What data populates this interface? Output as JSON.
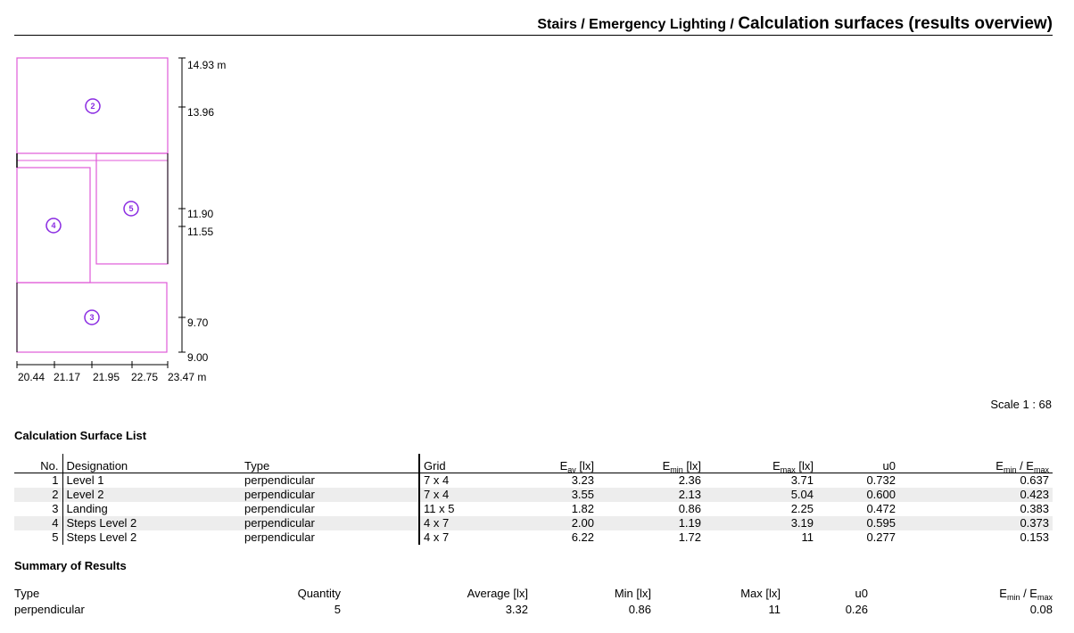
{
  "header": {
    "breadcrumb": "Stairs / Emergency Lighting / ",
    "title": "Calculation surfaces (results overview)"
  },
  "plan": {
    "y_axis": {
      "top_label": "14.93 m",
      "ticks": [
        "13.96",
        "11.90",
        "11.55",
        "9.70",
        "9.00"
      ]
    },
    "x_axis": {
      "ticks": [
        "20.44",
        "21.17",
        "21.95",
        "22.75"
      ],
      "end_label": "23.47 m"
    },
    "surfaces": [
      {
        "id": "2",
        "label": "2"
      },
      {
        "id": "3",
        "label": "3"
      },
      {
        "id": "4",
        "label": "4"
      },
      {
        "id": "5",
        "label": "5"
      }
    ],
    "surface_color": "#e05ad8",
    "marker_color": "#8a2be2"
  },
  "scale": "Scale 1 : 68",
  "surface_list": {
    "title": "Calculation Surface List",
    "headers": {
      "no": "No.",
      "designation": "Designation",
      "type": "Type",
      "grid": "Grid",
      "eav": "E",
      "eav_sub": "av",
      "eav_unit": " [lx]",
      "emin": "E",
      "emin_sub": "min",
      "emin_unit": " [lx]",
      "emax": "E",
      "emax_sub": "max",
      "emax_unit": " [lx]",
      "u0": "u0",
      "ratio_a": "E",
      "ratio_a_sub": "min",
      "ratio_mid": " / E",
      "ratio_b_sub": "max"
    },
    "rows": [
      {
        "no": "1",
        "designation": "Level 1",
        "type": "perpendicular",
        "grid": "7 x 4",
        "eav": "3.23",
        "emin": "2.36",
        "emax": "3.71",
        "u0": "0.732",
        "ratio": "0.637"
      },
      {
        "no": "2",
        "designation": "Level 2",
        "type": "perpendicular",
        "grid": "7 x 4",
        "eav": "3.55",
        "emin": "2.13",
        "emax": "5.04",
        "u0": "0.600",
        "ratio": "0.423"
      },
      {
        "no": "3",
        "designation": "Landing",
        "type": "perpendicular",
        "grid": "11 x 5",
        "eav": "1.82",
        "emin": "0.86",
        "emax": "2.25",
        "u0": "0.472",
        "ratio": "0.383"
      },
      {
        "no": "4",
        "designation": "Steps Level 2",
        "type": "perpendicular",
        "grid": "4 x 7",
        "eav": "2.00",
        "emin": "1.19",
        "emax": "3.19",
        "u0": "0.595",
        "ratio": "0.373"
      },
      {
        "no": "5",
        "designation": "Steps Level 2",
        "type": "perpendicular",
        "grid": "4 x 7",
        "eav": "6.22",
        "emin": "1.72",
        "emax": "11",
        "u0": "0.277",
        "ratio": "0.153"
      }
    ]
  },
  "summary": {
    "title": "Summary of Results",
    "headers": {
      "type": "Type",
      "quantity": "Quantity",
      "average": "Average [lx]",
      "min": "Min [lx]",
      "max": "Max [lx]",
      "u0": "u0",
      "ratio_a": "E",
      "ratio_a_sub": "min",
      "ratio_mid": " / E",
      "ratio_b_sub": "max"
    },
    "row": {
      "type": "perpendicular",
      "quantity": "5",
      "average": "3.32",
      "min": "0.86",
      "max": "11",
      "u0": "0.26",
      "ratio": "0.08"
    }
  }
}
